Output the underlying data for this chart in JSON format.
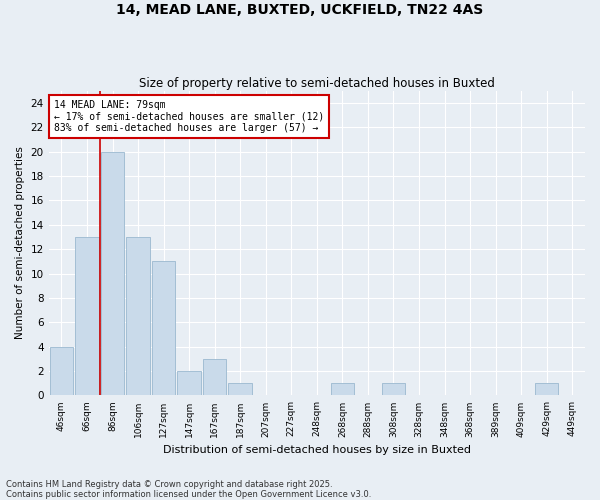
{
  "title_line1": "14, MEAD LANE, BUXTED, UCKFIELD, TN22 4AS",
  "title_line2": "Size of property relative to semi-detached houses in Buxted",
  "xlabel": "Distribution of semi-detached houses by size in Buxted",
  "ylabel": "Number of semi-detached properties",
  "categories": [
    "46sqm",
    "66sqm",
    "86sqm",
    "106sqm",
    "127sqm",
    "147sqm",
    "167sqm",
    "187sqm",
    "207sqm",
    "227sqm",
    "248sqm",
    "268sqm",
    "288sqm",
    "308sqm",
    "328sqm",
    "348sqm",
    "368sqm",
    "389sqm",
    "409sqm",
    "429sqm",
    "449sqm"
  ],
  "values": [
    4,
    13,
    20,
    13,
    11,
    2,
    3,
    1,
    0,
    0,
    0,
    1,
    0,
    1,
    0,
    0,
    0,
    0,
    0,
    1,
    0
  ],
  "bar_color": "#c9daea",
  "bar_edgecolor": "#9ab8cf",
  "marker_line_color": "#cc0000",
  "marker_label": "14 MEAD LANE: 79sqm",
  "annotation_smaller": "← 17% of semi-detached houses are smaller (12)",
  "annotation_larger": "83% of semi-detached houses are larger (57) →",
  "annotation_box_color": "#ffffff",
  "annotation_box_edgecolor": "#cc0000",
  "ylim": [
    0,
    25
  ],
  "yticks": [
    0,
    2,
    4,
    6,
    8,
    10,
    12,
    14,
    16,
    18,
    20,
    22,
    24
  ],
  "footer_line1": "Contains HM Land Registry data © Crown copyright and database right 2025.",
  "footer_line2": "Contains public sector information licensed under the Open Government Licence v3.0.",
  "background_color": "#e8eef4",
  "grid_color": "#ffffff"
}
